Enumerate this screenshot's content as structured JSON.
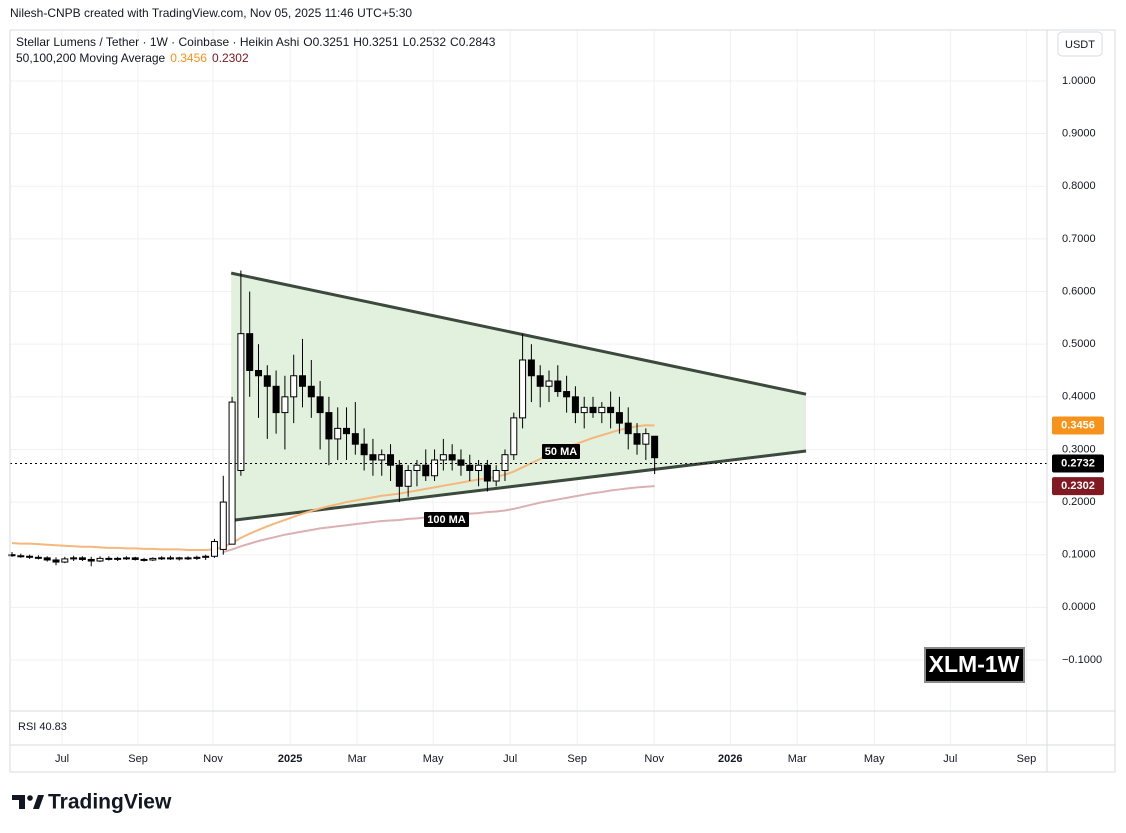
{
  "header": {
    "attribution": "Nilesh-CNPB created with TradingView.com, Nov 05, 2025 11:46 UTC+5:30"
  },
  "chart_data": {
    "type": "candlestick",
    "symbol_line": "Stellar Lumens / Tether · 1W · Coinbase · Heikin Ashi",
    "ohlc_labels": [
      "O0.3251",
      "H0.3251",
      "L0.2532",
      "C0.2843"
    ],
    "ma_title": "50,100,200 Moving Average",
    "currency": "USDT",
    "categories": [
      null,
      null,
      null,
      null,
      null,
      null,
      null,
      null,
      null,
      null,
      null,
      null,
      null,
      null,
      null,
      null,
      null,
      null,
      null,
      null,
      null,
      null,
      null,
      null,
      null,
      null,
      null,
      null,
      null,
      null,
      null,
      null,
      null,
      null,
      null,
      null,
      null,
      null,
      null,
      null,
      null,
      null,
      null,
      null,
      null,
      null,
      null,
      null,
      null,
      null,
      null,
      null,
      null,
      null,
      null,
      null,
      null,
      null,
      null,
      null,
      null,
      null,
      null,
      null,
      null,
      null,
      null,
      null,
      null,
      null,
      null,
      null,
      null,
      null
    ],
    "open": [
      0.1,
      0.098,
      0.097,
      0.095,
      0.094,
      0.09,
      0.086,
      0.092,
      0.094,
      0.091,
      0.088,
      0.093,
      0.092,
      0.093,
      0.094,
      0.091,
      0.09,
      0.093,
      0.094,
      0.092,
      0.094,
      0.093,
      0.095,
      0.097,
      0.11,
      0.12,
      0.26,
      0.52,
      0.45,
      0.44,
      0.42,
      0.37,
      0.4,
      0.44,
      0.42,
      0.4,
      0.37,
      0.32,
      0.34,
      0.33,
      0.31,
      0.29,
      0.28,
      0.29,
      0.27,
      0.23,
      0.26,
      0.27,
      0.25,
      0.28,
      0.29,
      0.28,
      0.27,
      0.26,
      0.27,
      0.24,
      0.26,
      0.29,
      0.36,
      0.47,
      0.44,
      0.42,
      0.43,
      0.41,
      0.4,
      0.37,
      0.38,
      0.37,
      0.38,
      0.37,
      0.35,
      0.33,
      0.31,
      0.3251
    ],
    "high": [
      0.105,
      0.102,
      0.1,
      0.099,
      0.097,
      0.095,
      0.096,
      0.098,
      0.097,
      0.096,
      0.097,
      0.097,
      0.096,
      0.097,
      0.096,
      0.094,
      0.095,
      0.097,
      0.098,
      0.096,
      0.097,
      0.098,
      0.1,
      0.13,
      0.25,
      0.4,
      0.64,
      0.6,
      0.5,
      0.46,
      0.45,
      0.44,
      0.48,
      0.51,
      0.47,
      0.43,
      0.4,
      0.38,
      0.38,
      0.39,
      0.34,
      0.32,
      0.3,
      0.31,
      0.28,
      0.27,
      0.28,
      0.3,
      0.3,
      0.32,
      0.31,
      0.3,
      0.29,
      0.28,
      0.28,
      0.27,
      0.3,
      0.37,
      0.52,
      0.5,
      0.46,
      0.45,
      0.46,
      0.44,
      0.42,
      0.4,
      0.4,
      0.39,
      0.41,
      0.4,
      0.38,
      0.35,
      0.34,
      0.3251
    ],
    "low": [
      0.096,
      0.094,
      0.092,
      0.091,
      0.087,
      0.08,
      0.084,
      0.088,
      0.088,
      0.078,
      0.086,
      0.089,
      0.088,
      0.09,
      0.089,
      0.087,
      0.088,
      0.09,
      0.09,
      0.089,
      0.09,
      0.09,
      0.09,
      0.094,
      0.1,
      0.12,
      0.25,
      0.4,
      0.36,
      0.32,
      0.33,
      0.3,
      0.35,
      0.38,
      0.36,
      0.3,
      0.27,
      0.28,
      0.28,
      0.29,
      0.26,
      0.25,
      0.25,
      0.24,
      0.2,
      0.21,
      0.23,
      0.24,
      0.24,
      0.26,
      0.26,
      0.25,
      0.24,
      0.23,
      0.22,
      0.23,
      0.24,
      0.28,
      0.34,
      0.39,
      0.38,
      0.39,
      0.4,
      0.37,
      0.35,
      0.34,
      0.36,
      0.35,
      0.34,
      0.33,
      0.3,
      0.29,
      0.28,
      0.2532
    ],
    "close": [
      0.098,
      0.097,
      0.095,
      0.094,
      0.09,
      0.086,
      0.092,
      0.094,
      0.091,
      0.088,
      0.093,
      0.092,
      0.093,
      0.094,
      0.091,
      0.09,
      0.093,
      0.094,
      0.092,
      0.094,
      0.093,
      0.095,
      0.097,
      0.125,
      0.2,
      0.39,
      0.52,
      0.45,
      0.44,
      0.42,
      0.37,
      0.4,
      0.44,
      0.42,
      0.4,
      0.37,
      0.32,
      0.34,
      0.33,
      0.31,
      0.29,
      0.28,
      0.29,
      0.27,
      0.23,
      0.26,
      0.27,
      0.25,
      0.28,
      0.29,
      0.28,
      0.27,
      0.26,
      0.27,
      0.24,
      0.26,
      0.29,
      0.36,
      0.47,
      0.44,
      0.42,
      0.43,
      0.41,
      0.4,
      0.37,
      0.38,
      0.37,
      0.38,
      0.37,
      0.35,
      0.33,
      0.31,
      0.33,
      0.2843
    ],
    "up_color": "#ffffff",
    "down_color": "#000000",
    "series": [
      {
        "name": "50 MA",
        "color": "#f5b77c",
        "values": [
          0.122,
          0.121,
          0.121,
          0.12,
          0.119,
          0.118,
          0.117,
          0.116,
          0.115,
          0.115,
          0.114,
          0.113,
          0.113,
          0.112,
          0.112,
          0.111,
          0.111,
          0.11,
          0.11,
          0.11,
          0.109,
          0.109,
          0.109,
          0.11,
          0.115,
          0.122,
          0.132,
          0.14,
          0.147,
          0.154,
          0.16,
          0.166,
          0.172,
          0.178,
          0.183,
          0.188,
          0.192,
          0.196,
          0.2,
          0.203,
          0.206,
          0.209,
          0.212,
          0.214,
          0.216,
          0.219,
          0.222,
          0.225,
          0.228,
          0.231,
          0.234,
          0.237,
          0.24,
          0.243,
          0.245,
          0.248,
          0.252,
          0.258,
          0.266,
          0.274,
          0.282,
          0.289,
          0.296,
          0.303,
          0.31,
          0.316,
          0.322,
          0.327,
          0.332,
          0.337,
          0.341,
          0.344,
          0.346,
          0.3456
        ]
      },
      {
        "name": "100 MA",
        "color": "#dbb0b3",
        "values": [
          null,
          null,
          null,
          null,
          null,
          null,
          null,
          null,
          null,
          null,
          null,
          null,
          null,
          null,
          null,
          null,
          null,
          null,
          null,
          null,
          null,
          null,
          null,
          null,
          0.105,
          0.11,
          0.116,
          0.121,
          0.126,
          0.13,
          0.134,
          0.138,
          0.141,
          0.144,
          0.147,
          0.15,
          0.152,
          0.154,
          0.156,
          0.158,
          0.16,
          0.162,
          0.164,
          0.165,
          0.166,
          0.168,
          0.169,
          0.171,
          0.172,
          0.174,
          0.175,
          0.177,
          0.178,
          0.179,
          0.181,
          0.182,
          0.184,
          0.187,
          0.191,
          0.195,
          0.199,
          0.202,
          0.205,
          0.208,
          0.211,
          0.214,
          0.217,
          0.219,
          0.222,
          0.224,
          0.226,
          0.228,
          0.229,
          0.2302
        ]
      }
    ],
    "badges": [
      {
        "value": 0.3456,
        "label": "0.3456",
        "color": "#f7931a"
      },
      {
        "value": 0.2732,
        "label": "0.2732",
        "color": "#000000",
        "dotted_line": true
      },
      {
        "value": 0.2302,
        "label": "0.2302",
        "color": "#801922"
      }
    ],
    "pattern": {
      "type": "triangle",
      "fill": "#e1f1dd",
      "stroke": "#3b4a3c",
      "upper": [
        [
          24.9,
          0.635
        ],
        [
          90.2,
          0.405
        ]
      ],
      "lower": [
        [
          24.9,
          0.165
        ],
        [
          90.2,
          0.297
        ]
      ]
    },
    "xlim": [
      -0.227,
      117.57
    ],
    "ylim": [
      -0.197,
      1.097
    ],
    "xticks": [
      {
        "value": 5.68,
        "label": "Jul"
      },
      {
        "value": 14.32,
        "label": "Sep"
      },
      {
        "value": 22.84,
        "label": "Nov"
      },
      {
        "value": 31.59,
        "label": "2025"
      },
      {
        "value": 39.2,
        "label": "Mar"
      },
      {
        "value": 47.84,
        "label": "May"
      },
      {
        "value": 56.59,
        "label": "Jul"
      },
      {
        "value": 64.2,
        "label": "Sep"
      },
      {
        "value": 72.95,
        "label": "Nov"
      },
      {
        "value": 81.59,
        "label": "2026"
      },
      {
        "value": 89.2,
        "label": "Mar"
      },
      {
        "value": 97.95,
        "label": "May"
      },
      {
        "value": 106.59,
        "label": "Jul"
      },
      {
        "value": 115.23,
        "label": "Sep"
      }
    ],
    "yticks": [
      {
        "value": 1,
        "label": "1.0000"
      },
      {
        "value": 0.9,
        "label": "0.9000"
      },
      {
        "value": 0.8,
        "label": "0.8000"
      },
      {
        "value": 0.7,
        "label": "0.7000"
      },
      {
        "value": 0.6,
        "label": "0.6000"
      },
      {
        "value": 0.5,
        "label": "0.5000"
      },
      {
        "value": 0.4,
        "label": "0.4000"
      },
      {
        "value": 0.3,
        "label": "0.3000"
      },
      {
        "value": 0.2,
        "label": "0.2000"
      },
      {
        "value": 0.1,
        "label": "0.1000"
      },
      {
        "value": 0,
        "label": "0.0000"
      },
      {
        "value": -0.1,
        "label": "−0.1000"
      }
    ],
    "grid": true,
    "watermark": "XLM-1W",
    "rsi_label": "RSI 40.83"
  },
  "footer": {
    "brand": "TradingView"
  }
}
